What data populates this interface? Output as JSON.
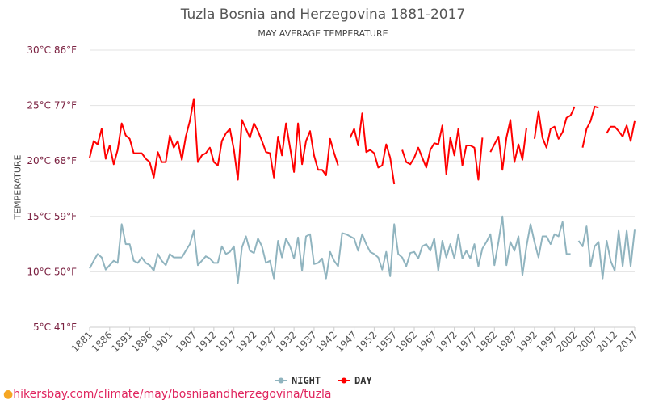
{
  "chart_data": {
    "type": "line",
    "title": "Tuzla Bosnia and Herzegovina 1881-2017",
    "subtitle": "MAY AVERAGE TEMPERATURE",
    "ylabel": "TEMPERATURE",
    "xlabel": "",
    "ylim": [
      5,
      30
    ],
    "xlim": [
      1881,
      2017
    ],
    "y_ticks": [
      {
        "value": 30,
        "label": "30°C 86°F"
      },
      {
        "value": 25,
        "label": "25°C 77°F"
      },
      {
        "value": 20,
        "label": "20°C 68°F"
      },
      {
        "value": 15,
        "label": "15°C 59°F"
      },
      {
        "value": 10,
        "label": "10°C 50°F"
      },
      {
        "value": 5,
        "label": "5°C 41°F"
      }
    ],
    "x_ticks": [
      "1881",
      "1886",
      "1891",
      "1896",
      "1901",
      "1907",
      "1912",
      "1917",
      "1922",
      "1927",
      "1932",
      "1937",
      "1942",
      "1947",
      "1952",
      "1957",
      "1962",
      "1967",
      "1972",
      "1977",
      "1982",
      "1987",
      "1992",
      "1997",
      "2002",
      "2007",
      "2012",
      "2017"
    ],
    "grid": true,
    "legend_position": "bottom",
    "series": [
      {
        "name": "NIGHT",
        "color": "#90b4bf",
        "start_year": 1881,
        "values": [
          10.3,
          11,
          11.6,
          11.3,
          10.2,
          10.6,
          11,
          10.8,
          14.3,
          12.5,
          12.5,
          11,
          10.8,
          11.3,
          10.8,
          10.6,
          10.1,
          11.6,
          11,
          10.6,
          11.6,
          11.3,
          11.3,
          11.3,
          11.9,
          12.5,
          13.7,
          10.6,
          11,
          11.4,
          11.2,
          10.8,
          10.8,
          12.3,
          11.6,
          11.8,
          12.3,
          9,
          12.2,
          13.2,
          11.9,
          11.7,
          13,
          12.3,
          10.8,
          11,
          9.4,
          12.8,
          11.3,
          13,
          12.3,
          11.2,
          13.1,
          10.1,
          13.2,
          13.4,
          10.7,
          10.8,
          11.2,
          9.4,
          11.8,
          11,
          10.5,
          13.5,
          13.4,
          13.2,
          13,
          11.9,
          13.4,
          12.5,
          11.8,
          11.6,
          11.3,
          10.2,
          11.8,
          9.6,
          14.3,
          11.6,
          11.3,
          10.5,
          11.7,
          11.8,
          11.2,
          12.3,
          12.5,
          11.9,
          13,
          10.1,
          12.8,
          11.3,
          12.5,
          11.2,
          13.4,
          11.2,
          11.9,
          11.2,
          12.5,
          10.5,
          12.1,
          12.7,
          13.4,
          10.6,
          12.7,
          15,
          10.6,
          12.7,
          11.9,
          13.2,
          9.7,
          12.3,
          14.3,
          12.7,
          11.3,
          13.2,
          13.2,
          12.5,
          13.4,
          13.2,
          14.5,
          11.6,
          11.6,
          null,
          12.8,
          12.3,
          14.1,
          10.5,
          12.3,
          12.7,
          9.4,
          12.8,
          11,
          10.1,
          13.7,
          10.5,
          13.7,
          10.5,
          13.8
        ]
      },
      {
        "name": "DAY",
        "color": "#ff0000",
        "start_year": 1881,
        "values": [
          20.3,
          21.8,
          21.5,
          22.9,
          20.2,
          21.4,
          19.7,
          21,
          23.4,
          22.3,
          22,
          20.7,
          20.7,
          20.7,
          20.2,
          19.9,
          18.5,
          20.8,
          19.9,
          19.9,
          22.3,
          21.2,
          21.8,
          20.1,
          22.2,
          23.6,
          25.6,
          19.9,
          20.5,
          20.7,
          21.2,
          19.9,
          19.6,
          21.8,
          22.5,
          22.9,
          21,
          18.3,
          23.7,
          22.9,
          22.1,
          23.4,
          22.7,
          21.8,
          20.8,
          20.7,
          18.5,
          22.2,
          20.5,
          23.4,
          21.2,
          19,
          23.4,
          19.7,
          21.8,
          22.7,
          20.5,
          19.2,
          19.2,
          18.7,
          22,
          20.7,
          19.6,
          null,
          null,
          22.1,
          22.9,
          21.4,
          24.3,
          20.8,
          21,
          20.7,
          19.4,
          19.6,
          21.5,
          20.3,
          17.9,
          null,
          21,
          19.9,
          19.7,
          20.3,
          21.2,
          20.3,
          19.4,
          21,
          21.6,
          21.5,
          23.2,
          18.8,
          22.1,
          20.5,
          22.9,
          19.6,
          21.4,
          21.4,
          21.2,
          18.3,
          22.1,
          null,
          20.8,
          21.5,
          22.2,
          19.2,
          22.1,
          23.7,
          19.9,
          21.5,
          20.1,
          23,
          null,
          22,
          24.5,
          22.1,
          21.2,
          22.9,
          23.1,
          22,
          22.6,
          23.9,
          24.1,
          24.9,
          null,
          21.2,
          22.9,
          23.6,
          24.9,
          24.8,
          null,
          22.5,
          23.1,
          23.1,
          22.7,
          22.2,
          23.2,
          21.8,
          23.6
        ]
      }
    ]
  },
  "footer": {
    "link": "hikersbay.com/climate/may/bosniaandherzegovina/tuzla",
    "icon": "map-pin-icon"
  }
}
